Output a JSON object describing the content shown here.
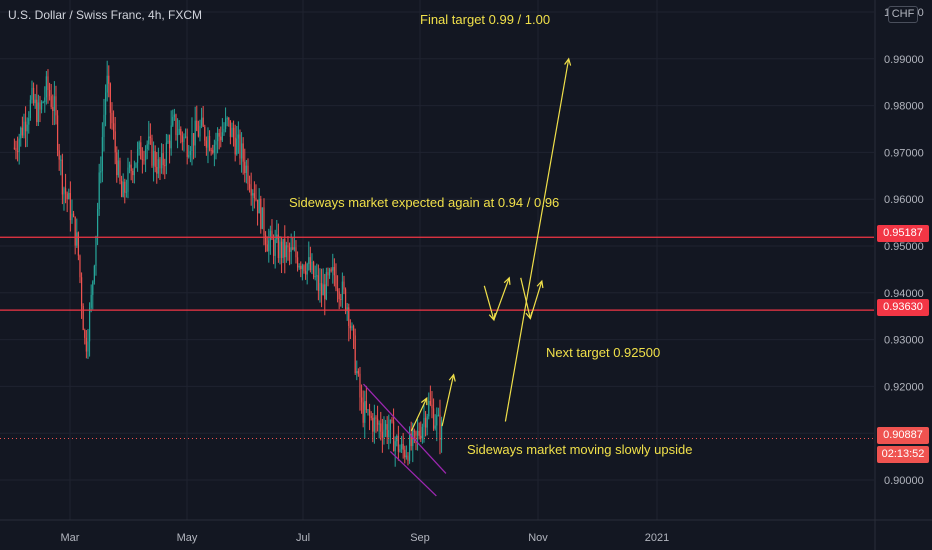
{
  "header": {
    "symbol_title": "U.S. Dollar / Swiss Franc, 4h, FXCM",
    "currency": "CHF"
  },
  "annotations": {
    "final_target": "Final target 0.99 / 1.00",
    "sideways_expected": "Sideways market expected again at 0.94 / 0.96",
    "next_target": "Next target 0.92500",
    "sideways_moving": "Sideways market moving slowly upside"
  },
  "price_tags": {
    "upper_level": "0.95187",
    "lower_level": "0.93630",
    "last_price": "0.90887",
    "countdown": "02:13:52"
  },
  "colors": {
    "background": "#131722",
    "grid": "#1f2330",
    "level_line": "#f23645",
    "up_candle": "#26a69a",
    "down_candle": "#ef5350",
    "annotation": "#f0e04a",
    "channel": "#9c27b0",
    "last_price_tag": "#ef5350",
    "axis_text": "#b2b5be"
  },
  "chart_data": {
    "type": "candlestick",
    "symbol": "U.S. Dollar / Swiss Franc",
    "interval": "4h",
    "source": "FXCM",
    "x_ticks": [
      "Mar",
      "May",
      "Jul",
      "Sep",
      "Nov",
      "2021"
    ],
    "y_ticks": [
      "0.90000",
      "0.91000",
      "0.92000",
      "0.93000",
      "0.94000",
      "0.95000",
      "0.96000",
      "0.97000",
      "0.98000",
      "0.99000",
      "1.00000"
    ],
    "ylim": [
      0.89,
      1.0
    ],
    "horizontal_levels": [
      0.95187,
      0.9363
    ],
    "last_price": 0.90887,
    "price_path": [
      [
        "2020-02-01",
        0.971
      ],
      [
        "2020-02-05",
        0.975
      ],
      [
        "2020-02-10",
        0.981
      ],
      [
        "2020-02-14",
        0.978
      ],
      [
        "2020-02-18",
        0.984
      ],
      [
        "2020-02-22",
        0.979
      ],
      [
        "2020-02-26",
        0.964
      ],
      [
        "2020-03-01",
        0.958
      ],
      [
        "2020-03-05",
        0.95
      ],
      [
        "2020-03-09",
        0.928
      ],
      [
        "2020-03-12",
        0.938
      ],
      [
        "2020-03-16",
        0.962
      ],
      [
        "2020-03-20",
        0.986
      ],
      [
        "2020-03-24",
        0.972
      ],
      [
        "2020-03-28",
        0.96
      ],
      [
        "2020-04-03",
        0.968
      ],
      [
        "2020-04-10",
        0.972
      ],
      [
        "2020-04-17",
        0.966
      ],
      [
        "2020-04-24",
        0.976
      ],
      [
        "2020-05-01",
        0.972
      ],
      [
        "2020-05-08",
        0.975
      ],
      [
        "2020-05-15",
        0.972
      ],
      [
        "2020-05-22",
        0.976
      ],
      [
        "2020-05-29",
        0.97
      ],
      [
        "2020-06-05",
        0.962
      ],
      [
        "2020-06-12",
        0.951
      ],
      [
        "2020-06-19",
        0.949
      ],
      [
        "2020-06-26",
        0.948
      ],
      [
        "2020-07-03",
        0.946
      ],
      [
        "2020-07-10",
        0.94
      ],
      [
        "2020-07-17",
        0.944
      ],
      [
        "2020-07-24",
        0.937
      ],
      [
        "2020-07-31",
        0.915
      ],
      [
        "2020-08-07",
        0.912
      ],
      [
        "2020-08-14",
        0.911
      ],
      [
        "2020-08-21",
        0.906
      ],
      [
        "2020-08-28",
        0.908
      ],
      [
        "2020-09-04",
        0.916
      ],
      [
        "2020-09-11",
        0.91
      ]
    ],
    "projection_arrows": [
      {
        "from": [
          "2020-08-26",
          0.9105
        ],
        "to": [
          "2020-09-03",
          0.9175
        ]
      },
      {
        "from": [
          "2020-09-11",
          0.9115
        ],
        "to": [
          "2020-09-17",
          0.9225
        ]
      },
      {
        "from": [
          "2020-10-03",
          0.9415
        ],
        "to": [
          "2020-10-08",
          0.9342
        ]
      },
      {
        "from": [
          "2020-10-08",
          0.9342
        ],
        "to": [
          "2020-10-16",
          0.9432
        ]
      },
      {
        "from": [
          "2020-10-22",
          0.9432
        ],
        "to": [
          "2020-10-27",
          0.9345
        ]
      },
      {
        "from": [
          "2020-10-27",
          0.9345
        ],
        "to": [
          "2020-11-02",
          0.9425
        ]
      },
      {
        "from": [
          "2020-10-14",
          0.9125
        ],
        "to": [
          "2020-11-16",
          0.99
        ]
      }
    ],
    "channel": {
      "upper": [
        [
          "2020-08-01",
          0.9205
        ],
        [
          "2020-09-13",
          0.9014
        ]
      ],
      "lower": [
        [
          "2020-08-15",
          0.9061
        ],
        [
          "2020-09-08",
          0.8966
        ]
      ]
    }
  }
}
